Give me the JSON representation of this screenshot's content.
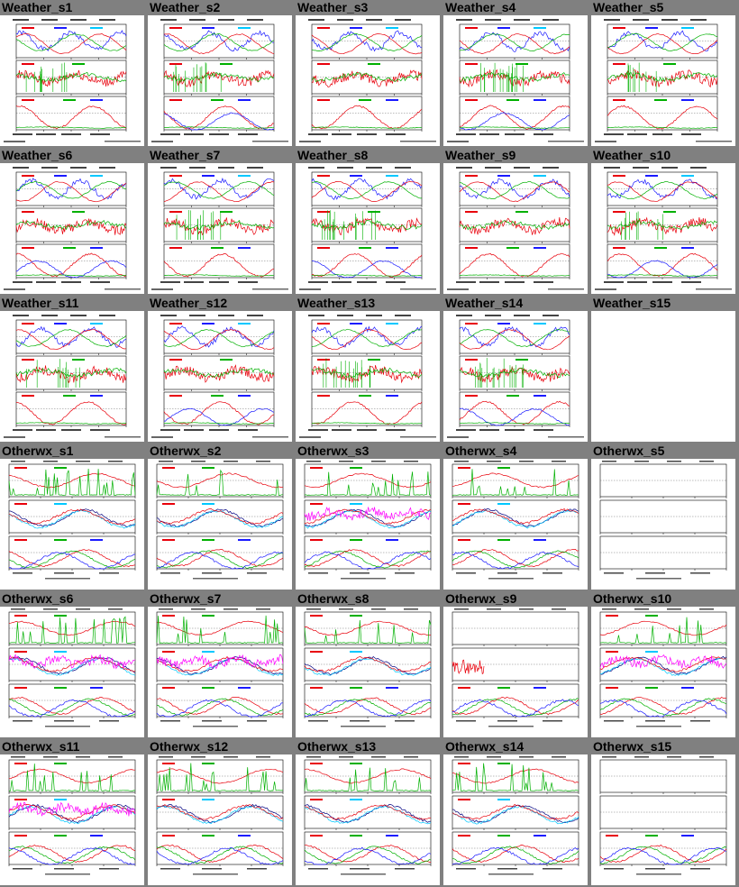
{
  "page": {
    "background": "#808080",
    "thumb_background": "#ffffff"
  },
  "colors": {
    "red": "#e8000b",
    "green": "#00b000",
    "blue": "#1a1aff",
    "cyan": "#00c8ff",
    "magenta": "#ff00ff",
    "navy": "#000080",
    "frame": "#000000"
  },
  "cells": [
    {
      "title": "Weather_s1",
      "kind": "weather",
      "seed": 1
    },
    {
      "title": "Weather_s2",
      "kind": "weather",
      "seed": 2
    },
    {
      "title": "Weather_s3",
      "kind": "weather",
      "seed": 3
    },
    {
      "title": "Weather_s4",
      "kind": "weather",
      "seed": 4
    },
    {
      "title": "Weather_s5",
      "kind": "weather",
      "seed": 5
    },
    {
      "title": "Weather_s6",
      "kind": "weather",
      "seed": 6
    },
    {
      "title": "Weather_s7",
      "kind": "weather",
      "seed": 7
    },
    {
      "title": "Weather_s8",
      "kind": "weather",
      "seed": 8
    },
    {
      "title": "Weather_s9",
      "kind": "weather",
      "seed": 9
    },
    {
      "title": "Weather_s10",
      "kind": "weather",
      "seed": 10
    },
    {
      "title": "Weather_s11",
      "kind": "weather",
      "seed": 11
    },
    {
      "title": "Weather_s12",
      "kind": "weather",
      "seed": 12
    },
    {
      "title": "Weather_s13",
      "kind": "weather",
      "seed": 13
    },
    {
      "title": "Weather_s14",
      "kind": "weather",
      "seed": 14
    },
    {
      "title": "Weather_s15",
      "kind": "weather",
      "seed": 15
    },
    {
      "title": "Otherwx_s1",
      "kind": "otherwx",
      "seed": 21
    },
    {
      "title": "Otherwx_s2",
      "kind": "otherwx",
      "seed": 22
    },
    {
      "title": "Otherwx_s3",
      "kind": "otherwx",
      "seed": 23
    },
    {
      "title": "Otherwx_s4",
      "kind": "otherwx",
      "seed": 24
    },
    {
      "title": "Otherwx_s5",
      "kind": "otherwx",
      "seed": 25
    },
    {
      "title": "Otherwx_s6",
      "kind": "otherwx",
      "seed": 26
    },
    {
      "title": "Otherwx_s7",
      "kind": "otherwx",
      "seed": 27
    },
    {
      "title": "Otherwx_s8",
      "kind": "otherwx",
      "seed": 28
    },
    {
      "title": "Otherwx_s9",
      "kind": "otherwx",
      "seed": 29
    },
    {
      "title": "Otherwx_s10",
      "kind": "otherwx",
      "seed": 30
    },
    {
      "title": "Otherwx_s11",
      "kind": "otherwx",
      "seed": 31
    },
    {
      "title": "Otherwx_s12",
      "kind": "otherwx",
      "seed": 32
    },
    {
      "title": "Otherwx_s13",
      "kind": "otherwx",
      "seed": 33
    },
    {
      "title": "Otherwx_s14",
      "kind": "otherwx",
      "seed": 34
    },
    {
      "title": "Otherwx_s15",
      "kind": "otherwx",
      "seed": 35
    }
  ]
}
